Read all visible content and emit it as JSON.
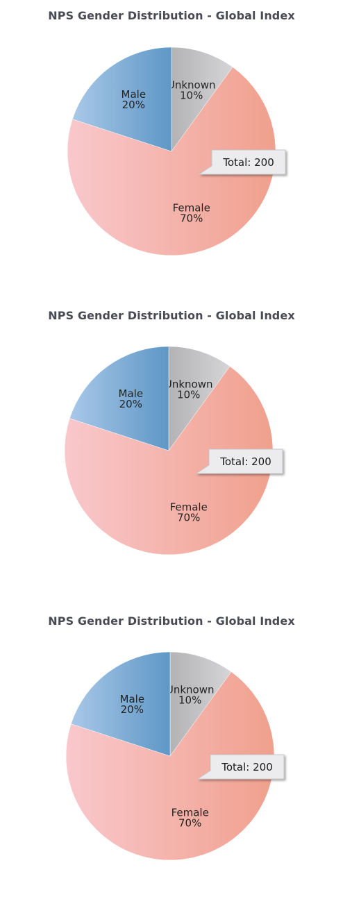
{
  "chart_data": [
    {
      "type": "pie",
      "title": "NPS Gender Distribution - Global Index",
      "slices": [
        {
          "label": "Unknown",
          "pct_label": "10%",
          "value": 10,
          "colors": [
            "#b3b3b5",
            "#d5d5d7"
          ]
        },
        {
          "label": "Female",
          "pct_label": "70%",
          "value": 70,
          "colors": [
            "#f9c8cc",
            "#f0a08d"
          ]
        },
        {
          "label": "Male",
          "pct_label": "20%",
          "value": 20,
          "colors": [
            "#a9c8e8",
            "#5e97c6"
          ]
        }
      ],
      "callout": "Total: 200"
    },
    {
      "type": "pie",
      "title": "NPS Gender Distribution - Global Index",
      "slices": [
        {
          "label": "Unknown",
          "pct_label": "10%",
          "value": 10,
          "colors": [
            "#b3b3b5",
            "#d5d5d7"
          ]
        },
        {
          "label": "Female",
          "pct_label": "70%",
          "value": 70,
          "colors": [
            "#f9c8cc",
            "#f0a08d"
          ]
        },
        {
          "label": "Male",
          "pct_label": "20%",
          "value": 20,
          "colors": [
            "#a9c8e8",
            "#5e97c6"
          ]
        }
      ],
      "callout": "Total: 200"
    },
    {
      "type": "pie",
      "title": "NPS Gender Distribution - Global Index",
      "slices": [
        {
          "label": "Unknown",
          "pct_label": "10%",
          "value": 10,
          "colors": [
            "#b3b3b5",
            "#d5d5d7"
          ]
        },
        {
          "label": "Female",
          "pct_label": "70%",
          "value": 70,
          "colors": [
            "#f9c8cc",
            "#f0a08d"
          ]
        },
        {
          "label": "Male",
          "pct_label": "20%",
          "value": 20,
          "colors": [
            "#a9c8e8",
            "#5e97c6"
          ]
        }
      ],
      "callout": "Total: 200"
    }
  ]
}
